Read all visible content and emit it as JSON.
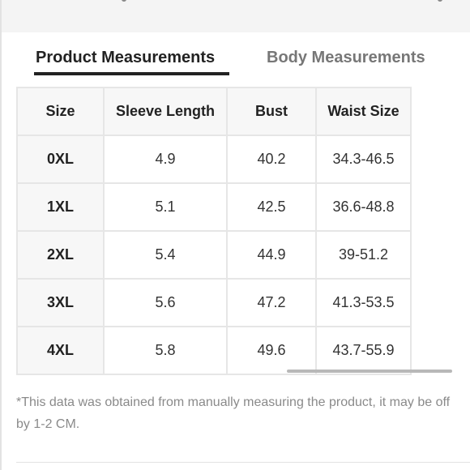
{
  "tabs": [
    {
      "label": "Product Measurements",
      "active": true
    },
    {
      "label": "Body Measurements",
      "active": false
    }
  ],
  "table": {
    "headers": [
      "Size",
      "Sleeve Length",
      "Bust",
      "Waist Size"
    ],
    "rows": [
      [
        "0XL",
        "4.9",
        "40.2",
        "34.3-46.5"
      ],
      [
        "1XL",
        "5.1",
        "42.5",
        "36.6-48.8"
      ],
      [
        "2XL",
        "5.4",
        "44.9",
        "39-51.2"
      ],
      [
        "3XL",
        "5.6",
        "47.2",
        "41.3-53.5"
      ],
      [
        "4XL",
        "5.8",
        "49.6",
        "43.7-55.9"
      ]
    ]
  },
  "note": "*This data was obtained from manually measuring the product, it may be off by 1-2 CM.",
  "colors": {
    "accent": "#222222",
    "inactive_tab": "#777777",
    "header_bg": "#f7f7f7",
    "border": "#e6e6e6",
    "note_text": "#8a8a8a"
  }
}
